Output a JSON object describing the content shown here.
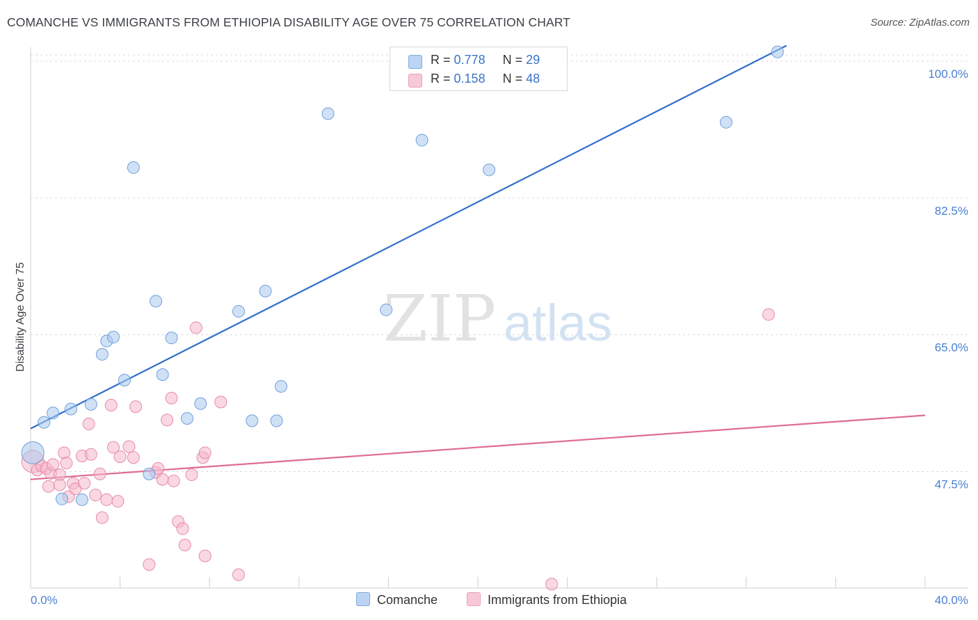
{
  "header": {
    "title": "COMANCHE VS IMMIGRANTS FROM ETHIOPIA DISABILITY AGE OVER 75 CORRELATION CHART",
    "source": "Source: ZipAtlas.com"
  },
  "watermark": {
    "zip": "ZIP",
    "atlas": "atlas"
  },
  "legend": {
    "rows": [
      {
        "r_label": "R =",
        "r_value": "0.778",
        "n_label": "N =",
        "n_value": "29"
      },
      {
        "r_label": "R =",
        "r_value": "0.158",
        "n_label": "N =",
        "n_value": "48"
      }
    ]
  },
  "bottom_legend": {
    "series1": "Comanche",
    "series2": "Immigrants from Ethiopia"
  },
  "colors": {
    "comanche_fill": "#a9c8ef",
    "comanche_stroke": "#6e9fdc",
    "comanche_line": "#2f6fcc",
    "ethiopia_fill": "#f6b8cb",
    "ethiopia_stroke": "#e58aa8",
    "ethiopia_line": "#e06a94",
    "tick": "#4a7fd0",
    "grid": "#dadada"
  },
  "chart_data": {
    "type": "scatter",
    "title": "COMANCHE VS IMMIGRANTS FROM ETHIOPIA DISABILITY AGE OVER 75 CORRELATION CHART",
    "xlabel": "",
    "ylabel": "Disability Age Over 75",
    "xlim": [
      0,
      40
    ],
    "ylim": [
      32.6,
      102.5
    ],
    "y_ticks": [
      {
        "value": 47.5,
        "label": "47.5%"
      },
      {
        "value": 65.0,
        "label": "65.0%"
      },
      {
        "value": 82.5,
        "label": "82.5%"
      },
      {
        "value": 100.0,
        "label": "100.0%"
      }
    ],
    "x_tick_labels": [
      {
        "value": 0,
        "label": "0.0%"
      },
      {
        "value": 40,
        "label": "40.0%"
      }
    ],
    "x_minor_ticks": [
      0,
      4,
      8,
      12,
      16,
      20,
      24,
      28,
      32,
      36,
      40
    ],
    "series": [
      {
        "name": "Comanche",
        "r": 0.778,
        "n": 29,
        "trend": {
          "x1": 0,
          "y1": 53.0,
          "x2": 33.8,
          "y2": 102.0
        },
        "points": [
          {
            "x": 0.1,
            "y": 49.9,
            "big": true
          },
          {
            "x": 0.6,
            "y": 53.8
          },
          {
            "x": 1.0,
            "y": 55.0
          },
          {
            "x": 1.8,
            "y": 55.5
          },
          {
            "x": 2.7,
            "y": 56.1
          },
          {
            "x": 1.4,
            "y": 44.0
          },
          {
            "x": 2.3,
            "y": 43.9
          },
          {
            "x": 3.2,
            "y": 62.5
          },
          {
            "x": 3.4,
            "y": 64.2
          },
          {
            "x": 3.7,
            "y": 64.7
          },
          {
            "x": 4.2,
            "y": 59.2
          },
          {
            "x": 4.6,
            "y": 86.4
          },
          {
            "x": 5.3,
            "y": 47.2
          },
          {
            "x": 5.6,
            "y": 69.3
          },
          {
            "x": 5.9,
            "y": 59.9
          },
          {
            "x": 6.3,
            "y": 64.6
          },
          {
            "x": 7.0,
            "y": 54.3
          },
          {
            "x": 7.6,
            "y": 56.2
          },
          {
            "x": 9.3,
            "y": 68.0
          },
          {
            "x": 9.9,
            "y": 54.0
          },
          {
            "x": 10.5,
            "y": 70.6
          },
          {
            "x": 11.0,
            "y": 54.0
          },
          {
            "x": 11.2,
            "y": 58.4
          },
          {
            "x": 13.3,
            "y": 93.3
          },
          {
            "x": 15.9,
            "y": 68.2
          },
          {
            "x": 17.5,
            "y": 89.9
          },
          {
            "x": 20.5,
            "y": 86.1
          },
          {
            "x": 31.1,
            "y": 92.2
          },
          {
            "x": 33.4,
            "y": 101.2
          }
        ]
      },
      {
        "name": "Immigrants from Ethiopia",
        "r": 0.158,
        "n": 48,
        "trend": {
          "x1": 0,
          "y1": 46.5,
          "x2": 40,
          "y2": 54.7
        },
        "points": [
          {
            "x": 0.1,
            "y": 48.8,
            "big": true
          },
          {
            "x": 0.3,
            "y": 47.7
          },
          {
            "x": 0.5,
            "y": 48.2
          },
          {
            "x": 0.7,
            "y": 47.9
          },
          {
            "x": 0.8,
            "y": 45.6
          },
          {
            "x": 0.9,
            "y": 47.3
          },
          {
            "x": 1.0,
            "y": 48.4
          },
          {
            "x": 1.3,
            "y": 47.1
          },
          {
            "x": 1.3,
            "y": 45.8
          },
          {
            "x": 1.5,
            "y": 49.9
          },
          {
            "x": 1.6,
            "y": 48.6
          },
          {
            "x": 1.7,
            "y": 44.3
          },
          {
            "x": 1.9,
            "y": 46.0
          },
          {
            "x": 2.0,
            "y": 45.3
          },
          {
            "x": 2.3,
            "y": 49.5
          },
          {
            "x": 2.4,
            "y": 46.0
          },
          {
            "x": 2.6,
            "y": 53.6
          },
          {
            "x": 2.7,
            "y": 49.7
          },
          {
            "x": 2.9,
            "y": 44.5
          },
          {
            "x": 3.1,
            "y": 47.2
          },
          {
            "x": 3.2,
            "y": 41.6
          },
          {
            "x": 3.4,
            "y": 43.9
          },
          {
            "x": 3.6,
            "y": 56.0
          },
          {
            "x": 3.7,
            "y": 50.6
          },
          {
            "x": 3.9,
            "y": 43.7
          },
          {
            "x": 4.0,
            "y": 49.4
          },
          {
            "x": 4.4,
            "y": 50.7
          },
          {
            "x": 4.6,
            "y": 49.3
          },
          {
            "x": 4.7,
            "y": 55.8
          },
          {
            "x": 5.3,
            "y": 35.6
          },
          {
            "x": 5.6,
            "y": 47.4
          },
          {
            "x": 5.7,
            "y": 47.9
          },
          {
            "x": 5.9,
            "y": 46.5
          },
          {
            "x": 6.1,
            "y": 54.1
          },
          {
            "x": 6.3,
            "y": 56.9
          },
          {
            "x": 6.4,
            "y": 46.3
          },
          {
            "x": 6.6,
            "y": 41.1
          },
          {
            "x": 6.8,
            "y": 40.2
          },
          {
            "x": 6.9,
            "y": 38.1
          },
          {
            "x": 7.2,
            "y": 47.1
          },
          {
            "x": 7.4,
            "y": 65.9
          },
          {
            "x": 7.7,
            "y": 49.3
          },
          {
            "x": 7.8,
            "y": 49.9
          },
          {
            "x": 7.8,
            "y": 36.7
          },
          {
            "x": 8.5,
            "y": 56.4
          },
          {
            "x": 9.3,
            "y": 34.3
          },
          {
            "x": 23.3,
            "y": 33.1
          },
          {
            "x": 33.0,
            "y": 67.6
          }
        ]
      }
    ]
  }
}
